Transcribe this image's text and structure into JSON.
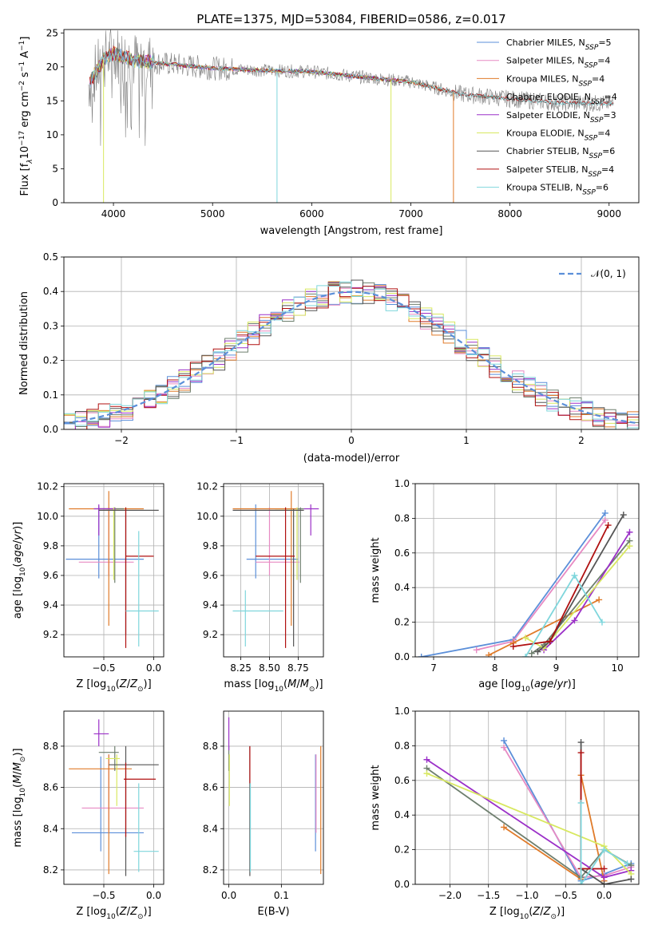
{
  "colors": {
    "Chabrier MILES": "#5b8fd9",
    "Salpeter MILES": "#e78ac3",
    "Kroupa MILES": "#e07b2a",
    "Chabrier ELODIE": "#6e7f6e",
    "Salpeter ELODIE": "#9b30c8",
    "Kroupa ELODIE": "#d8e860",
    "Chabrier STELIB": "#555555",
    "Salpeter STELIB": "#b01010",
    "Kroupa STELIB": "#7fd6dc"
  },
  "chart_data": [
    {
      "id": "spectrum",
      "type": "line",
      "title": "PLATE=1375, MJD=53084, FIBERID=0586, z=0.017",
      "xlabel": "wavelength [Angstrom, rest frame]",
      "ylabel": "Flux [f",
      "xlim": [
        3500,
        9300
      ],
      "ylim": [
        0,
        25.5
      ],
      "xticks": [
        "4000",
        "5000",
        "6000",
        "7000",
        "8000",
        "9000"
      ],
      "yticks": [
        "0",
        "5",
        "10",
        "15",
        "20",
        "25"
      ],
      "legend_position": "top-right",
      "legend": [
        {
          "model": "Chabrier MILES",
          "text": "Chabrier MILES, N",
          "sub": "SSP",
          "n": "=5"
        },
        {
          "model": "Salpeter MILES",
          "text": "Salpeter MILES, N",
          "sub": "SSP",
          "n": "=4"
        },
        {
          "model": "Kroupa MILES",
          "text": "Kroupa MILES, N",
          "sub": "SSP",
          "n": "=4"
        },
        {
          "model": "Chabrier ELODIE",
          "text": "Chabrier ELODIE, N",
          "sub": "SSP",
          "n": "=4"
        },
        {
          "model": "Salpeter ELODIE",
          "text": "Salpeter ELODIE, N",
          "sub": "SSP",
          "n": "=3"
        },
        {
          "model": "Kroupa ELODIE",
          "text": "Kroupa ELODIE, N",
          "sub": "SSP",
          "n": "=4"
        },
        {
          "model": "Chabrier STELIB",
          "text": "Chabrier STELIB, N",
          "sub": "SSP",
          "n": "=6"
        },
        {
          "model": "Salpeter STELIB",
          "text": "Salpeter STELIB, N",
          "sub": "SSP",
          "n": "=4"
        },
        {
          "model": "Kroupa STELIB",
          "text": "Kroupa STELIB, N",
          "sub": "SSP",
          "n": "=6"
        }
      ],
      "continuum": {
        "x": [
          3750,
          3900,
          4000,
          4200,
          4500,
          5000,
          5500,
          6000,
          6500,
          7000,
          7500,
          8000,
          8500,
          9000
        ],
        "y": [
          17.5,
          21.0,
          22.0,
          21.0,
          20.5,
          19.8,
          19.5,
          19.3,
          18.5,
          17.8,
          16.0,
          15.3,
          14.7,
          14.6
        ]
      },
      "dropouts": [
        {
          "x": 3900,
          "model": "Kroupa ELODIE"
        },
        {
          "x": 5650,
          "model": "Kroupa STELIB"
        },
        {
          "x": 6800,
          "model": "Kroupa ELODIE"
        },
        {
          "x": 7430,
          "model": "Kroupa MILES"
        }
      ]
    },
    {
      "id": "residuals",
      "type": "histogram",
      "xlabel": "(data-model)/error",
      "ylabel": "Normed distribution",
      "xlim": [
        -2.5,
        2.5
      ],
      "ylim": [
        0,
        0.5
      ],
      "xticks": [
        "−2",
        "−1",
        "0",
        "1",
        "2"
      ],
      "yticks": [
        "0.0",
        "0.1",
        "0.2",
        "0.3",
        "0.4",
        "0.5"
      ],
      "bins": 50,
      "reference": {
        "label": "N(0,1)",
        "label_rendered": "𝒩(0, 1)",
        "color": "#5b8fd9"
      },
      "legend_position": "top-right"
    },
    {
      "id": "age-vs-Z",
      "type": "errorbar",
      "xlabel": "Z [log10(Z/Z☉)]",
      "ylabel": "age [log10(age/yr)]",
      "xlim": [
        -0.9,
        0.1
      ],
      "ylim": [
        9.05,
        10.22
      ],
      "xticks": [
        "−0.5",
        "0.0"
      ],
      "yticks": [
        "9.2",
        "9.4",
        "9.6",
        "9.8",
        "10.0",
        "10.2"
      ],
      "points": [
        {
          "model": "Chabrier MILES",
          "x": -0.55,
          "xlo": -0.88,
          "xhi": -0.1,
          "y": 9.71,
          "ylo": 9.58,
          "yhi": 10.07
        },
        {
          "model": "Salpeter MILES",
          "x": -0.45,
          "xlo": -0.75,
          "xhi": -0.2,
          "y": 9.69,
          "ylo": 9.6,
          "yhi": 10.06
        },
        {
          "model": "Kroupa MILES",
          "x": -0.45,
          "xlo": -0.85,
          "xhi": -0.1,
          "y": 10.05,
          "ylo": 9.26,
          "yhi": 10.17
        },
        {
          "model": "Chabrier ELODIE",
          "x": -0.39,
          "xlo": -0.55,
          "xhi": -0.3,
          "y": 10.05,
          "ylo": 9.55,
          "yhi": 10.06
        },
        {
          "model": "Salpeter ELODIE",
          "x": -0.55,
          "xlo": -0.6,
          "xhi": -0.38,
          "y": 10.05,
          "ylo": 9.87,
          "yhi": 10.08
        },
        {
          "model": "Kroupa ELODIE",
          "x": -0.4,
          "xlo": -0.48,
          "xhi": -0.35,
          "y": 10.04,
          "ylo": 9.57,
          "yhi": 10.06
        },
        {
          "model": "Chabrier STELIB",
          "x": -0.28,
          "xlo": -0.55,
          "xhi": 0.05,
          "y": 10.04,
          "ylo": 9.2,
          "yhi": 10.05
        },
        {
          "model": "Salpeter STELIB",
          "x": -0.28,
          "xlo": -0.28,
          "xhi": 0.0,
          "y": 9.73,
          "ylo": 9.11,
          "yhi": 10.06
        },
        {
          "model": "Kroupa STELIB",
          "x": -0.15,
          "xlo": -0.28,
          "xhi": 0.05,
          "y": 9.36,
          "ylo": 9.12,
          "yhi": 9.9
        }
      ]
    },
    {
      "id": "age-vs-mass",
      "type": "errorbar",
      "xlabel": "mass [log10(M/M☉)]",
      "ylabel": "",
      "xlim": [
        8.1,
        8.97
      ],
      "ylim": [
        9.05,
        10.22
      ],
      "xticks": [
        "8.25",
        "8.50",
        "8.75"
      ],
      "yticks": [
        "9.2",
        "9.4",
        "9.6",
        "9.8",
        "10.0",
        "10.2"
      ],
      "points": [
        {
          "model": "Chabrier MILES",
          "x": 8.38,
          "xlo": 8.3,
          "xhi": 8.75,
          "y": 9.71,
          "ylo": 9.58,
          "yhi": 10.08
        },
        {
          "model": "Salpeter MILES",
          "x": 8.5,
          "xlo": 8.38,
          "xhi": 8.76,
          "y": 9.69,
          "ylo": 9.6,
          "yhi": 10.06
        },
        {
          "model": "Kroupa MILES",
          "x": 8.69,
          "xlo": 8.18,
          "xhi": 8.76,
          "y": 10.05,
          "ylo": 9.26,
          "yhi": 10.17
        },
        {
          "model": "Chabrier ELODIE",
          "x": 8.77,
          "xlo": 8.74,
          "xhi": 8.8,
          "y": 10.05,
          "ylo": 9.55,
          "yhi": 10.06
        },
        {
          "model": "Salpeter ELODIE",
          "x": 8.86,
          "xlo": 8.8,
          "xhi": 8.93,
          "y": 10.05,
          "ylo": 9.87,
          "yhi": 10.08
        },
        {
          "model": "Kroupa ELODIE",
          "x": 8.74,
          "xlo": 8.55,
          "xhi": 8.76,
          "y": 10.04,
          "ylo": 9.57,
          "yhi": 10.06
        },
        {
          "model": "Chabrier STELIB",
          "x": 8.71,
          "xlo": 8.18,
          "xhi": 8.8,
          "y": 10.04,
          "ylo": 9.12,
          "yhi": 10.05
        },
        {
          "model": "Salpeter STELIB",
          "x": 8.64,
          "xlo": 8.38,
          "xhi": 8.72,
          "y": 9.73,
          "ylo": 9.11,
          "yhi": 10.06
        },
        {
          "model": "Kroupa STELIB",
          "x": 8.29,
          "xlo": 8.18,
          "xhi": 8.62,
          "y": 9.36,
          "ylo": 9.12,
          "yhi": 9.5
        }
      ]
    },
    {
      "id": "weight-vs-age",
      "type": "line",
      "xlabel": "age [log10(age/yr)]",
      "ylabel": "mass weight",
      "xlim": [
        6.7,
        10.35
      ],
      "ylim": [
        0,
        1.0
      ],
      "xticks": [
        "7",
        "8",
        "9",
        "10"
      ],
      "yticks": [
        "0.0",
        "0.2",
        "0.4",
        "0.6",
        "0.8",
        "1.0"
      ],
      "series": [
        {
          "model": "Chabrier MILES",
          "x": [
            6.8,
            8.3,
            9.8
          ],
          "y": [
            0.0,
            0.1,
            0.83
          ]
        },
        {
          "model": "Salpeter MILES",
          "x": [
            7.7,
            8.3,
            9.8
          ],
          "y": [
            0.04,
            0.09,
            0.79
          ]
        },
        {
          "model": "Kroupa MILES",
          "x": [
            7.9,
            8.3,
            9.7
          ],
          "y": [
            0.01,
            0.08,
            0.33
          ]
        },
        {
          "model": "Chabrier ELODIE",
          "x": [
            8.6,
            8.8,
            10.2
          ],
          "y": [
            0.02,
            0.07,
            0.67
          ]
        },
        {
          "model": "Salpeter ELODIE",
          "x": [
            8.8,
            9.3,
            10.2
          ],
          "y": [
            0.04,
            0.21,
            0.72
          ]
        },
        {
          "model": "Kroupa ELODIE",
          "x": [
            8.5,
            8.8,
            10.2
          ],
          "y": [
            0.11,
            0.05,
            0.64
          ]
        },
        {
          "model": "Chabrier STELIB",
          "x": [
            8.7,
            8.9,
            10.1
          ],
          "y": [
            0.03,
            0.09,
            0.82
          ]
        },
        {
          "model": "Salpeter STELIB",
          "x": [
            8.3,
            8.9,
            9.85
          ],
          "y": [
            0.06,
            0.09,
            0.76
          ]
        },
        {
          "model": "Kroupa STELIB",
          "x": [
            8.5,
            9.3,
            9.75
          ],
          "y": [
            0.0,
            0.47,
            0.2
          ]
        }
      ]
    },
    {
      "id": "mass-vs-Z",
      "type": "errorbar",
      "xlabel": "Z [log10(Z/Z☉)]",
      "ylabel": "mass [log10(M/M☉)]",
      "xlim": [
        -0.9,
        0.1
      ],
      "ylim": [
        8.13,
        8.97
      ],
      "xticks": [
        "−0.5",
        "0.0"
      ],
      "yticks": [
        "8.2",
        "8.4",
        "8.6",
        "8.8"
      ],
      "points": [
        {
          "model": "Chabrier MILES",
          "x": -0.53,
          "xlo": -0.82,
          "xhi": -0.1,
          "y": 8.38,
          "ylo": 8.29,
          "yhi": 8.75
        },
        {
          "model": "Salpeter MILES",
          "x": -0.45,
          "xlo": -0.72,
          "xhi": -0.1,
          "y": 8.5,
          "ylo": 8.38,
          "yhi": 8.76
        },
        {
          "model": "Kroupa MILES",
          "x": -0.45,
          "xlo": -0.85,
          "xhi": -0.22,
          "y": 8.69,
          "ylo": 8.18,
          "yhi": 8.76
        },
        {
          "model": "Chabrier ELODIE",
          "x": -0.39,
          "xlo": -0.55,
          "xhi": -0.35,
          "y": 8.77,
          "ylo": 8.68,
          "yhi": 8.8
        },
        {
          "model": "Salpeter ELODIE",
          "x": -0.55,
          "xlo": -0.6,
          "xhi": -0.45,
          "y": 8.86,
          "ylo": 8.8,
          "yhi": 8.93
        },
        {
          "model": "Kroupa ELODIE",
          "x": -0.37,
          "xlo": -0.48,
          "xhi": -0.34,
          "y": 8.74,
          "ylo": 8.51,
          "yhi": 8.76
        },
        {
          "model": "Chabrier STELIB",
          "x": -0.28,
          "xlo": -0.45,
          "xhi": 0.05,
          "y": 8.71,
          "ylo": 8.17,
          "yhi": 8.8
        },
        {
          "model": "Salpeter STELIB",
          "x": -0.28,
          "xlo": -0.3,
          "xhi": 0.02,
          "y": 8.64,
          "ylo": 8.36,
          "yhi": 8.72
        },
        {
          "model": "Kroupa STELIB",
          "x": -0.15,
          "xlo": -0.2,
          "xhi": 0.05,
          "y": 8.29,
          "ylo": 8.19,
          "yhi": 8.62
        }
      ]
    },
    {
      "id": "mass-vs-ebv",
      "type": "errorbar",
      "xlabel": "E(B-V)",
      "ylabel": "",
      "xlim": [
        -0.01,
        0.18
      ],
      "ylim": [
        8.13,
        8.97
      ],
      "xticks": [
        "0.0",
        "0.1"
      ],
      "yticks": [
        "8.2",
        "8.4",
        "8.6",
        "8.8"
      ],
      "points": [
        {
          "model": "Chabrier MILES",
          "x": 0.165,
          "xlo": 0.165,
          "xhi": 0.165,
          "y": 8.38,
          "ylo": 8.29,
          "yhi": 8.76
        },
        {
          "model": "Salpeter MILES",
          "x": 0.166,
          "xlo": 0.166,
          "xhi": 0.166,
          "y": 8.5,
          "ylo": 8.38,
          "yhi": 8.76
        },
        {
          "model": "Kroupa MILES",
          "x": 0.175,
          "xlo": 0.175,
          "xhi": 0.175,
          "y": 8.69,
          "ylo": 8.18,
          "yhi": 8.8
        },
        {
          "model": "Chabrier ELODIE",
          "x": 0.0,
          "xlo": 0.0,
          "xhi": 0.0,
          "y": 8.77,
          "ylo": 8.68,
          "yhi": 8.8
        },
        {
          "model": "Salpeter ELODIE",
          "x": 0.0,
          "xlo": 0.0,
          "xhi": 0.0,
          "y": 8.86,
          "ylo": 8.78,
          "yhi": 8.94
        },
        {
          "model": "Kroupa ELODIE",
          "x": 0.001,
          "xlo": 0.001,
          "xhi": 0.001,
          "y": 8.6,
          "ylo": 8.51,
          "yhi": 8.76
        },
        {
          "model": "Chabrier STELIB",
          "x": 0.04,
          "xlo": 0.04,
          "xhi": 0.04,
          "y": 8.71,
          "ylo": 8.17,
          "yhi": 8.8
        },
        {
          "model": "Salpeter STELIB",
          "x": 0.04,
          "xlo": 0.04,
          "xhi": 0.04,
          "y": 8.64,
          "ylo": 8.62,
          "yhi": 8.8
        },
        {
          "model": "Kroupa STELIB",
          "x": 0.041,
          "xlo": 0.041,
          "xhi": 0.041,
          "y": 8.29,
          "ylo": 8.19,
          "yhi": 8.62
        }
      ]
    },
    {
      "id": "weight-vs-Z",
      "type": "line",
      "xlabel": "Z [log10(Z/Z☉)]",
      "ylabel": "mass weight",
      "xlim": [
        -2.45,
        0.45
      ],
      "ylim": [
        0,
        1.0
      ],
      "xticks": [
        "−2.0",
        "−1.5",
        "−1.0",
        "−0.5",
        "0.0"
      ],
      "yticks": [
        "0.0",
        "0.2",
        "0.4",
        "0.6",
        "0.8",
        "1.0"
      ],
      "series": [
        {
          "model": "Chabrier MILES",
          "x": [
            -1.3,
            -0.3,
            0.0,
            0.35
          ],
          "y": [
            0.83,
            0.02,
            0.06,
            0.12
          ]
        },
        {
          "model": "Salpeter MILES",
          "x": [
            -1.3,
            -0.3,
            0.0,
            0.35
          ],
          "y": [
            0.79,
            0.04,
            0.05,
            0.1
          ]
        },
        {
          "model": "Kroupa MILES",
          "x": [
            -1.3,
            -0.3,
            -0.3,
            0.0
          ],
          "y": [
            0.33,
            0.03,
            0.63,
            0.02
          ]
        },
        {
          "model": "Chabrier ELODIE",
          "x": [
            -2.3,
            -0.3,
            0.0,
            0.35
          ],
          "y": [
            0.67,
            0.04,
            0.2,
            0.11
          ]
        },
        {
          "model": "Salpeter ELODIE",
          "x": [
            -2.3,
            0.0,
            0.35
          ],
          "y": [
            0.72,
            0.04,
            0.08
          ]
        },
        {
          "model": "Kroupa ELODIE",
          "x": [
            -2.3,
            0.0,
            0.35
          ],
          "y": [
            0.64,
            0.22,
            0.06
          ]
        },
        {
          "model": "Chabrier STELIB",
          "x": [
            -0.3,
            -0.3,
            0.0,
            0.35
          ],
          "y": [
            0.82,
            0.09,
            0.0,
            0.03
          ]
        },
        {
          "model": "Salpeter STELIB",
          "x": [
            -0.3,
            -0.3,
            0.0
          ],
          "y": [
            0.76,
            0.09,
            0.09
          ]
        },
        {
          "model": "Kroupa STELIB",
          "x": [
            -0.3,
            -0.3,
            0.0,
            0.3
          ],
          "y": [
            0.47,
            0.0,
            0.2,
            0.12
          ]
        }
      ]
    }
  ]
}
